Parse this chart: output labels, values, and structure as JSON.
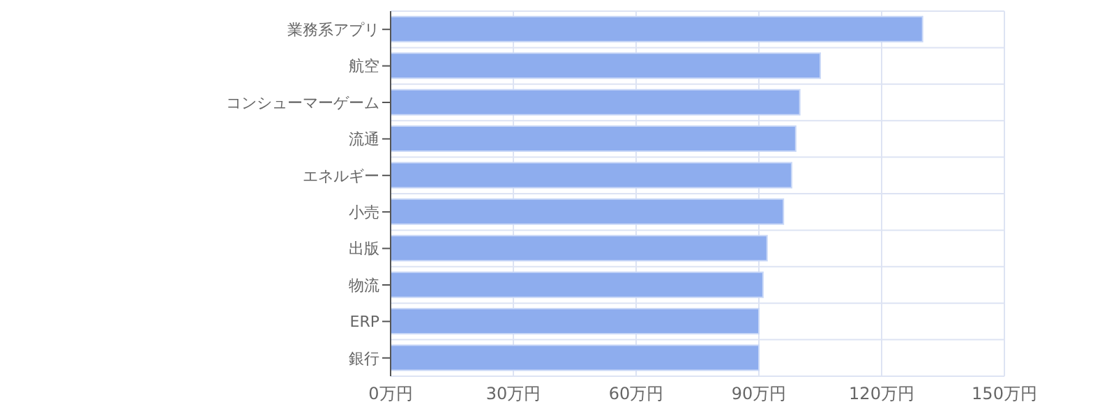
{
  "chart_data": {
    "type": "bar",
    "orientation": "horizontal",
    "categories": [
      "業務系アプリ",
      "航空",
      "コンシューマーゲーム",
      "流通",
      "エネルギー",
      "小売",
      "出版",
      "物流",
      "ERP",
      "銀行"
    ],
    "values": [
      130,
      105,
      100,
      99,
      98,
      96,
      92,
      91,
      90,
      90
    ],
    "color": "#8eadee",
    "xlim": [
      0,
      150
    ],
    "xticks": [
      {
        "value": 0,
        "label": "0万円"
      },
      {
        "value": 30,
        "label": "30万円"
      },
      {
        "value": 60,
        "label": "60万円"
      },
      {
        "value": 90,
        "label": "90万円"
      },
      {
        "value": 120,
        "label": "120万円"
      },
      {
        "value": 150,
        "label": "150万円"
      }
    ],
    "grid": true
  }
}
